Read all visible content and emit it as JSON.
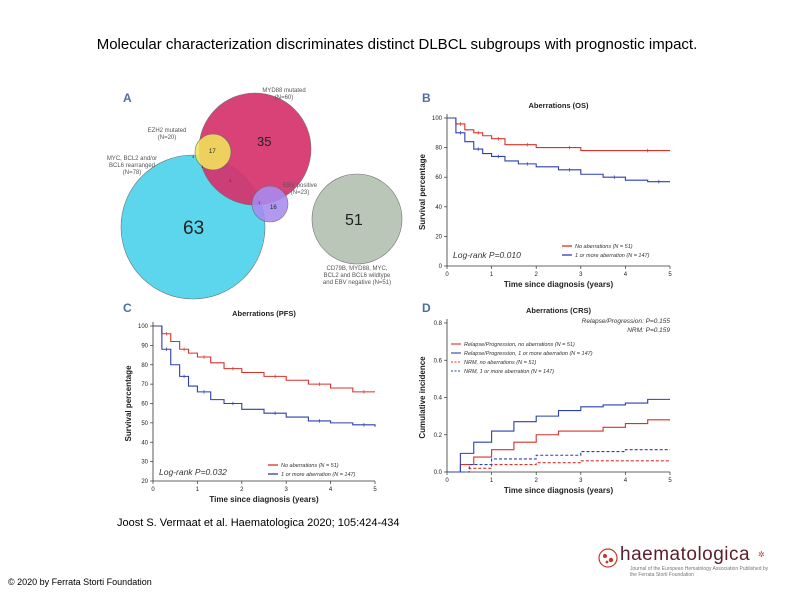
{
  "slide": {
    "title": "Molecular characterization discriminates distinct DLBCL subgroups with prognostic impact.",
    "citation": "Joost S. Vermaat et al. Haematologica 2020; 105:424-434",
    "copyright": "© 2020 by Ferrata Storti Foundation",
    "logo": {
      "name": "haematologica",
      "subtitle": "Journal of the European Hematology Association  Published by the Ferrata Storti Foundation"
    }
  },
  "panel_a": {
    "letter": "A",
    "sets": [
      {
        "label": "MYD88 mutated\n(N=60)",
        "count": "35",
        "color": "#d6336c"
      },
      {
        "label": "EZH2 mutated\n(N=20)",
        "count": "17",
        "color": "#f2e45c"
      },
      {
        "label": "MYC, BCL2 and/or\nBCL6 rearranged\n(N=78)",
        "count": "63",
        "color": "#4fd3ec"
      },
      {
        "label": "EBV positive\n(N=23)",
        "count": "16",
        "color": "#a78bf0"
      },
      {
        "label": "CD79B, MYD88, MYC,\nBCL2 and BCL6 wildtype\nand EBV negative (N=51)",
        "count": "51",
        "color": "#b5c2b3"
      }
    ],
    "small_counts": [
      "4",
      "1",
      "1",
      "1"
    ],
    "colors": {
      "outline": "#666666"
    }
  },
  "chart_data": [
    {
      "type": "line",
      "panel": "B",
      "title": "Aberrations (OS)",
      "xlabel": "Time since diagnosis (years)",
      "ylabel": "Survival percentage",
      "xlim": [
        0,
        5
      ],
      "ylim": [
        0,
        100
      ],
      "xticks": [
        "0",
        "1",
        "2",
        "3",
        "4",
        "5"
      ],
      "yticks": [
        "0",
        "20",
        "40",
        "60",
        "80",
        "100"
      ],
      "annotation": "Log-rank P=0.010",
      "series": [
        {
          "name": "No aberrations (N = 51)",
          "color": "#d9302c",
          "x": [
            0,
            0.2,
            0.4,
            0.6,
            0.8,
            1.0,
            1.3,
            1.6,
            2.0,
            2.5,
            3.0,
            4.0,
            5.0
          ],
          "y": [
            100,
            96,
            92,
            90,
            88,
            86,
            82,
            82,
            80,
            80,
            78,
            78,
            78
          ]
        },
        {
          "name": "1 or more aberration (N = 147)",
          "color": "#2c3fb0",
          "x": [
            0,
            0.2,
            0.4,
            0.6,
            0.8,
            1.0,
            1.3,
            1.6,
            2.0,
            2.5,
            3.0,
            3.5,
            4.0,
            4.5,
            5.0
          ],
          "y": [
            100,
            90,
            84,
            79,
            76,
            74,
            71,
            69,
            67,
            65,
            62,
            60,
            58,
            57,
            57
          ]
        }
      ]
    },
    {
      "type": "line",
      "panel": "C",
      "title": "Aberrations (PFS)",
      "xlabel": "Time since diagnosis (years)",
      "ylabel": "Survival percentage",
      "xlim": [
        0,
        5
      ],
      "ylim": [
        20,
        100
      ],
      "xticks": [
        "0",
        "1",
        "2",
        "3",
        "4",
        "5"
      ],
      "yticks": [
        "20",
        "30",
        "40",
        "50",
        "60",
        "70",
        "80",
        "90",
        "100"
      ],
      "annotation": "Log-rank P=0.032",
      "series": [
        {
          "name": "No aberrations (N = 51)",
          "color": "#d9302c",
          "x": [
            0,
            0.2,
            0.4,
            0.6,
            0.8,
            1.0,
            1.3,
            1.6,
            2.0,
            2.5,
            3.0,
            3.5,
            4.0,
            4.5,
            5.0
          ],
          "y": [
            100,
            96,
            92,
            88,
            86,
            84,
            81,
            78,
            76,
            74,
            72,
            70,
            68,
            66,
            66
          ]
        },
        {
          "name": "1 or more aberration (N = 147)",
          "color": "#2c3fb0",
          "x": [
            0,
            0.2,
            0.4,
            0.6,
            0.8,
            1.0,
            1.3,
            1.6,
            2.0,
            2.5,
            3.0,
            3.5,
            4.0,
            4.5,
            5.0
          ],
          "y": [
            100,
            88,
            80,
            74,
            69,
            66,
            62,
            60,
            57,
            55,
            53,
            51,
            50,
            49,
            48
          ]
        }
      ]
    },
    {
      "type": "line",
      "panel": "D",
      "title": "Aberrations (CRS)",
      "xlabel": "Time since diagnosis (years)",
      "ylabel": "Cumulative incidence",
      "xlim": [
        0,
        5
      ],
      "ylim": [
        0,
        0.8
      ],
      "xticks": [
        "0",
        "1",
        "2",
        "3",
        "4",
        "5"
      ],
      "yticks": [
        "0.0",
        "0.2",
        "0.4",
        "0.6",
        "0.8"
      ],
      "annotation_lines": [
        "Relapse/Progression: P=0.155",
        "NRM: P=0.159"
      ],
      "series": [
        {
          "name": "Relapse/Progression, no aberrations (N = 51)",
          "color": "#d9302c",
          "dash": false,
          "x": [
            0,
            0.3,
            0.6,
            1.0,
            1.5,
            2.0,
            2.5,
            3.0,
            3.5,
            4.0,
            4.5,
            5.0
          ],
          "y": [
            0,
            0.04,
            0.08,
            0.12,
            0.16,
            0.2,
            0.22,
            0.22,
            0.24,
            0.26,
            0.28,
            0.28
          ]
        },
        {
          "name": "Relapse/Progression, 1 or more aberration (N = 147)",
          "color": "#2c3fb0",
          "dash": false,
          "x": [
            0,
            0.3,
            0.6,
            1.0,
            1.5,
            2.0,
            2.5,
            3.0,
            3.5,
            4.0,
            4.5,
            5.0
          ],
          "y": [
            0,
            0.1,
            0.16,
            0.22,
            0.27,
            0.3,
            0.33,
            0.35,
            0.36,
            0.37,
            0.39,
            0.39
          ]
        },
        {
          "name": "NRM, no aberrations (N = 51)",
          "color": "#d9302c",
          "dash": true,
          "x": [
            0,
            0.5,
            1.0,
            2.0,
            3.0,
            4.0,
            5.0
          ],
          "y": [
            0,
            0.02,
            0.04,
            0.05,
            0.06,
            0.06,
            0.06
          ]
        },
        {
          "name": "NRM, 1 or more aberration (N = 147)",
          "color": "#2c3fb0",
          "dash": true,
          "x": [
            0,
            0.5,
            1.0,
            2.0,
            3.0,
            4.0,
            5.0
          ],
          "y": [
            0,
            0.04,
            0.07,
            0.09,
            0.11,
            0.12,
            0.12
          ]
        }
      ]
    }
  ]
}
